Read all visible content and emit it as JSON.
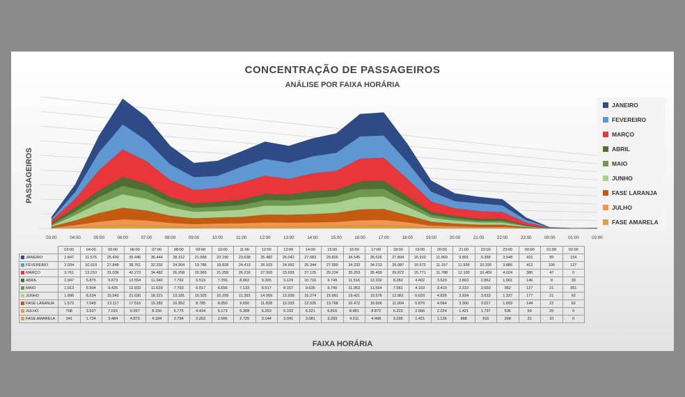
{
  "chart_data": {
    "type": "area",
    "title": "CONCENTRAÇÃO DE PASSAGEIROS",
    "subtitle": "ANÁLISE POR FAIXA HORÁRIA",
    "xlabel": "FAIXA HORÁRIA",
    "ylabel": "PASSAGEIROS",
    "categories": [
      "03:00",
      "04:00",
      "05:00",
      "06:00",
      "07:00",
      "08:00",
      "09:00",
      "10:00",
      "11:00",
      "12:00",
      "13:00",
      "14:00",
      "15:00",
      "16:00",
      "17:00",
      "18:00",
      "19:00",
      "20:00",
      "21:00",
      "22:00",
      "23:00",
      "00:00",
      "01:00",
      "02:00"
    ],
    "legend_position": "right",
    "grid": true,
    "series": [
      {
        "name": "JANEIRO",
        "color": "#2e4a87",
        "values": [
          "2.847",
          "11.575",
          "25.400",
          "39.446",
          "36.444",
          "28.312",
          "21.668",
          "23.190",
          "23.638",
          "26.482",
          "26.042",
          "27.583",
          "29.826",
          "34.545",
          "35.626",
          "27.894",
          "16.919",
          "11.869",
          "9.891",
          "9.368",
          "3.548",
          "415",
          "99",
          "154"
        ]
      },
      {
        "name": "FEVEREIRO",
        "color": "#5f97d2",
        "values": [
          "2.934",
          "10.919",
          "27.848",
          "38.761",
          "32.292",
          "24.304",
          "19.786",
          "18.828",
          "24.413",
          "26.103",
          "24.992",
          "26.344",
          "27.999",
          "34.333",
          "34.213",
          "26.087",
          "15.572",
          "11.157",
          "11.936",
          "10.326",
          "3.885",
          "412",
          "100",
          "127"
        ]
      },
      {
        "name": "MARÇO",
        "color": "#e8363a",
        "values": [
          "3.761",
          "13.210",
          "31.036",
          "42.273",
          "34.482",
          "26.258",
          "20.965",
          "21.258",
          "26.216",
          "27.993",
          "23.693",
          "27.125",
          "29.224",
          "35.253",
          "35.400",
          "26.872",
          "15.771",
          "11.788",
          "12.102",
          "10.409",
          "4.024",
          "380",
          "47",
          "0"
        ]
      },
      {
        "name": "ABRIL",
        "color": "#4f6e33",
        "values": [
          "1.947",
          "5.875",
          "9.873",
          "13.554",
          "11.340",
          "7.792",
          "6.519",
          "7.256",
          "8.062",
          "9.305",
          "9.129",
          "10.716",
          "9.749",
          "11.516",
          "12.332",
          "8.282",
          "4.402",
          "3.529",
          "2.863",
          "2.862",
          "1.061",
          "146",
          "9",
          "30"
        ]
      },
      {
        "name": "MAIO",
        "color": "#6f9a4d",
        "values": [
          "1.913",
          "5.504",
          "9.425",
          "12.933",
          "11.629",
          "7.793",
          "6.017",
          "6.656",
          "7.133",
          "8.517",
          "8.157",
          "9.635",
          "9.740",
          "11.953",
          "11.564",
          "7.581",
          "4.163",
          "3.419",
          "2.310",
          "2.650",
          "952",
          "127",
          "21",
          "351"
        ]
      },
      {
        "name": "JUNHO",
        "color": "#a9d08e",
        "values": [
          "1.686",
          "8.534",
          "15.542",
          "21.030",
          "18.221",
          "13.181",
          "10.325",
          "10.299",
          "11.393",
          "14.059",
          "13.939",
          "15.274",
          "15.991",
          "19.421",
          "19.576",
          "12.861",
          "6.633",
          "4.828",
          "3.934",
          "3.633",
          "1.337",
          "177",
          "21",
          "92"
        ]
      },
      {
        "name": "FASE LARANJA",
        "color": "#c55a11",
        "values": [
          "1.572",
          "7.049",
          "13.117",
          "17.516",
          "15.282",
          "10.952",
          "8.785",
          "8.950",
          "9.650",
          "11.828",
          "12.033",
          "12.525",
          "13.768",
          "16.472",
          "16.606",
          "11.004",
          "5.879",
          "4.064",
          "3.300",
          "3.027",
          "1.093",
          "144",
          "22",
          "92"
        ]
      },
      {
        "name": "JULHO",
        "color": "#f4954e",
        "values": [
          "708",
          "3.537",
          "7.015",
          "9.357",
          "8.150",
          "5.775",
          "4.434",
          "5.173",
          "5.308",
          "6.253",
          "6.102",
          "6.321",
          "6.816",
          "8.481",
          "8.872",
          "6.223",
          "2.966",
          "2.224",
          "1.421",
          "1.737",
          "536",
          "59",
          "20",
          "0"
        ]
      },
      {
        "name": "FASE AMARELA",
        "color": "#d9a441",
        "values": [
          "341",
          "1.734",
          "3.484",
          "4.873",
          "4.184",
          "2.794",
          "2.263",
          "2.566",
          "2.725",
          "3.144",
          "3.041",
          "3.081",
          "3.293",
          "4.211",
          "4.468",
          "3.295",
          "1.421",
          "1.136",
          "868",
          "916",
          "268",
          "31",
          "10",
          "0"
        ]
      }
    ]
  }
}
